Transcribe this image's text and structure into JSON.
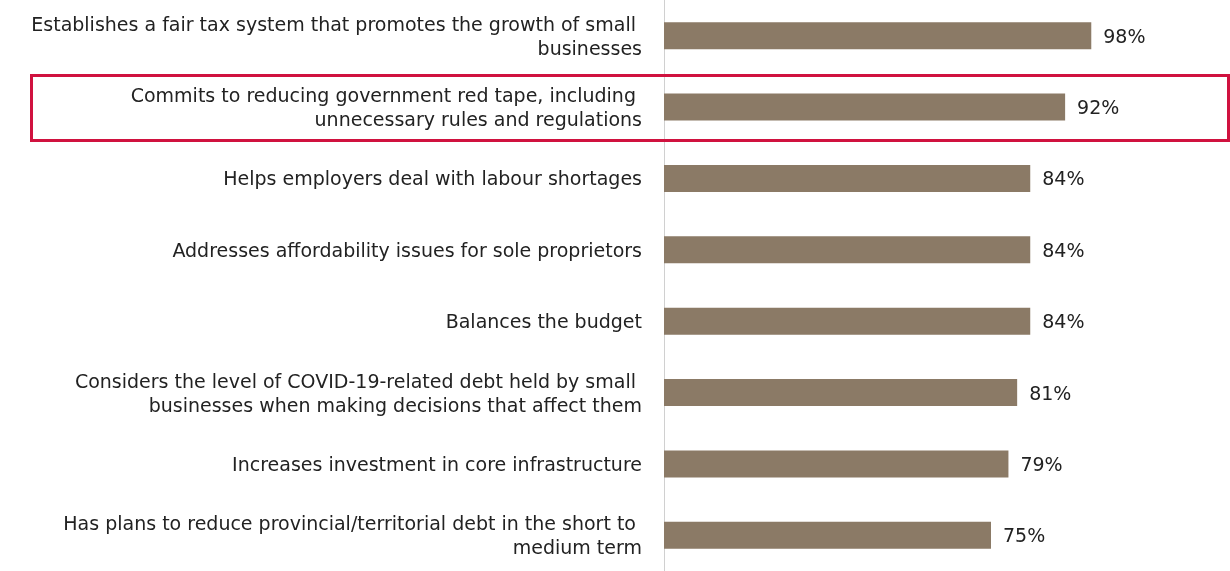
{
  "chart_data": {
    "type": "bar",
    "orientation": "horizontal",
    "categories": [
      "Establishes a fair tax system that promotes the growth of small businesses",
      "Commits to reducing government red tape, including unnecessary rules and regulations",
      "Helps employers deal with labour shortages",
      "Addresses affordability issues for sole proprietors",
      "Balances the budget",
      "Considers the level of COVID-19-related debt held by small businesses when making decisions that affect them",
      "Increases investment in core infrastructure",
      "Has plans to reduce provincial/territorial debt in the short to medium term"
    ],
    "values": [
      98,
      92,
      84,
      84,
      84,
      81,
      79,
      75
    ],
    "value_labels": [
      "98%",
      "92%",
      "84%",
      "84%",
      "84%",
      "81%",
      "79%",
      "75%"
    ],
    "color": "#8b7a66"
  }
}
